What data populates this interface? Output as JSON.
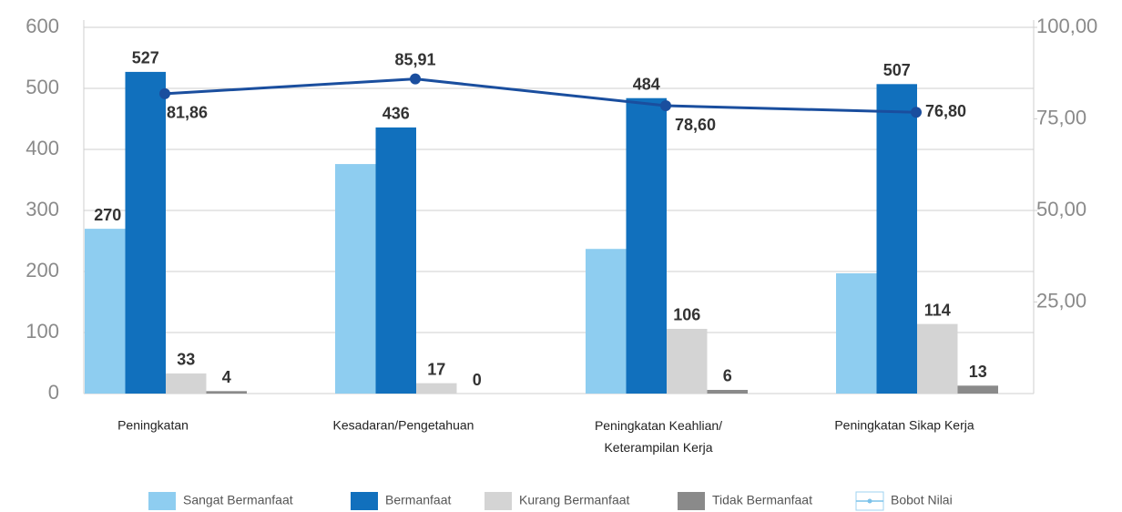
{
  "chart_data": {
    "type": "bar",
    "categories": [
      "Peningkatan",
      "Kesadaran/Pengetahuan",
      "Peningkatan Keahlian/ Keterampilan Kerja",
      "Peningkatan Sikap Kerja"
    ],
    "series": [
      {
        "name": "Sangat Bermanfaat",
        "color": "#8ecdf0",
        "values": [
          270,
          376,
          237,
          197
        ],
        "value_labels": [
          "270",
          null,
          null,
          null
        ]
      },
      {
        "name": "Bermanfaat",
        "color": "#1170bd",
        "values": [
          527,
          436,
          484,
          507
        ]
      },
      {
        "name": "Kurang Bermanfaat",
        "color": "#d4d4d4",
        "values": [
          33,
          17,
          106,
          114
        ]
      },
      {
        "name": "Tidak Bermanfaat",
        "color": "#8a8a8a",
        "values": [
          4,
          0,
          6,
          13
        ]
      },
      {
        "name": "Bobot Nilai",
        "type": "line",
        "axis": "y2",
        "color": "#1a4e9e",
        "values": [
          81.86,
          85.91,
          78.6,
          76.8
        ],
        "value_labels": [
          "81,86",
          "85,91",
          "78,60",
          "76,80"
        ]
      }
    ],
    "ylim": [
      0,
      600
    ],
    "yticks": [
      0,
      100,
      200,
      300,
      400,
      500,
      600
    ],
    "y2lim": [
      0,
      100
    ],
    "y2ticks": [
      {
        "value": 25,
        "label": "25,00"
      },
      {
        "value": 50,
        "label": "50,00"
      },
      {
        "value": 75,
        "label": "75,00"
      },
      {
        "value": 100,
        "label": "100,00"
      }
    ],
    "grid": true,
    "legend": "bottom"
  }
}
